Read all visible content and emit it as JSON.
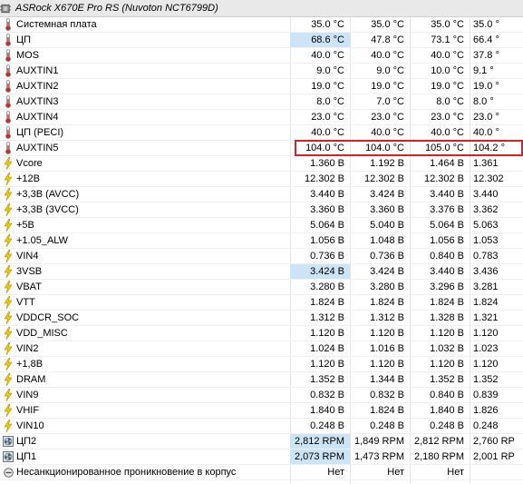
{
  "header": {
    "title": "ASRock X670E Pro RS (Nuvoton NCT6799D)"
  },
  "rows": [
    {
      "type": "temp",
      "label": "Системная плата",
      "v1": "35.0 °C",
      "v2": "35.0 °C",
      "v3": "35.0 °C",
      "v4": "35.0 °"
    },
    {
      "type": "temp",
      "label": "ЦП",
      "v1": "68.6 °C",
      "v2": "47.8 °C",
      "v3": "73.1 °C",
      "v4": "66.4 °",
      "hl": true
    },
    {
      "type": "temp",
      "label": "MOS",
      "v1": "40.0 °C",
      "v2": "40.0 °C",
      "v3": "40.0 °C",
      "v4": "37.8 °"
    },
    {
      "type": "temp",
      "label": "AUXTIN1",
      "v1": "9.0 °C",
      "v2": "9.0 °C",
      "v3": "10.0 °C",
      "v4": "9.1 °"
    },
    {
      "type": "temp",
      "label": "AUXTIN2",
      "v1": "19.0 °C",
      "v2": "19.0 °C",
      "v3": "19.0 °C",
      "v4": "19.0 °"
    },
    {
      "type": "temp",
      "label": "AUXTIN3",
      "v1": "8.0 °C",
      "v2": "7.0 °C",
      "v3": "8.0 °C",
      "v4": "8.0 °"
    },
    {
      "type": "temp",
      "label": "AUXTIN4",
      "v1": "23.0 °C",
      "v2": "23.0 °C",
      "v3": "23.0 °C",
      "v4": "23.0 °"
    },
    {
      "type": "temp",
      "label": "ЦП (PECI)",
      "v1": "40.0 °C",
      "v2": "40.0 °C",
      "v3": "40.0 °C",
      "v4": "40.0 °"
    },
    {
      "type": "temp",
      "label": "AUXTIN5",
      "v1": "104.0 °C",
      "v2": "104.0 °C",
      "v3": "105.0 °C",
      "v4": "104.2 °"
    },
    {
      "type": "volt",
      "label": "Vcore",
      "v1": "1.360 В",
      "v2": "1.192 В",
      "v3": "1.464 В",
      "v4": "1.361"
    },
    {
      "type": "volt",
      "label": "+12В",
      "v1": "12.302 В",
      "v2": "12.302 В",
      "v3": "12.302 В",
      "v4": "12.302"
    },
    {
      "type": "volt",
      "label": "+3,3В (AVCC)",
      "v1": "3.440 В",
      "v2": "3.424 В",
      "v3": "3.440 В",
      "v4": "3.440"
    },
    {
      "type": "volt",
      "label": "+3,3В (3VCC)",
      "v1": "3.360 В",
      "v2": "3.360 В",
      "v3": "3.376 В",
      "v4": "3.362"
    },
    {
      "type": "volt",
      "label": "+5В",
      "v1": "5.064 В",
      "v2": "5.040 В",
      "v3": "5.064 В",
      "v4": "5.063"
    },
    {
      "type": "volt",
      "label": "+1.05_ALW",
      "v1": "1.056 В",
      "v2": "1.048 В",
      "v3": "1.056 В",
      "v4": "1.053"
    },
    {
      "type": "volt",
      "label": "VIN4",
      "v1": "0.736 В",
      "v2": "0.736 В",
      "v3": "0.840 В",
      "v4": "0.783"
    },
    {
      "type": "volt",
      "label": "3VSB",
      "v1": "3.424 В",
      "v2": "3.424 В",
      "v3": "3.440 В",
      "v4": "3.436",
      "hl": true
    },
    {
      "type": "volt",
      "label": "VBAT",
      "v1": "3.280 В",
      "v2": "3.280 В",
      "v3": "3.296 В",
      "v4": "3.281"
    },
    {
      "type": "volt",
      "label": "VTT",
      "v1": "1.824 В",
      "v2": "1.824 В",
      "v3": "1.824 В",
      "v4": "1.824"
    },
    {
      "type": "volt",
      "label": "VDDCR_SOC",
      "v1": "1.312 В",
      "v2": "1.312 В",
      "v3": "1.328 В",
      "v4": "1.321"
    },
    {
      "type": "volt",
      "label": "VDD_MISC",
      "v1": "1.120 В",
      "v2": "1.120 В",
      "v3": "1.120 В",
      "v4": "1.120"
    },
    {
      "type": "volt",
      "label": "VIN2",
      "v1": "1.024 В",
      "v2": "1.016 В",
      "v3": "1.032 В",
      "v4": "1.023"
    },
    {
      "type": "volt",
      "label": "+1,8В",
      "v1": "1.120 В",
      "v2": "1.120 В",
      "v3": "1.120 В",
      "v4": "1.120"
    },
    {
      "type": "volt",
      "label": "DRAM",
      "v1": "1.352 В",
      "v2": "1.344 В",
      "v3": "1.352 В",
      "v4": "1.352"
    },
    {
      "type": "volt",
      "label": "VIN9",
      "v1": "0.832 В",
      "v2": "0.832 В",
      "v3": "0.840 В",
      "v4": "0.839"
    },
    {
      "type": "volt",
      "label": "VHIF",
      "v1": "1.840 В",
      "v2": "1.824 В",
      "v3": "1.840 В",
      "v4": "1.826"
    },
    {
      "type": "volt",
      "label": "VIN10",
      "v1": "0.248 В",
      "v2": "0.248 В",
      "v3": "0.248 В",
      "v4": "0.248"
    },
    {
      "type": "fan",
      "label": "ЦП2",
      "v1": "2,812 RPM",
      "v2": "1,849 RPM",
      "v3": "2,812 RPM",
      "v4": "2,760 RP",
      "hl": true
    },
    {
      "type": "fan",
      "label": "ЦП1",
      "v1": "2,073 RPM",
      "v2": "1,473 RPM",
      "v3": "2,180 RPM",
      "v4": "2,001 RP",
      "hl": true
    },
    {
      "type": "intrusion",
      "label": "Несанкционированное проникновение в корпус",
      "v1": "Нет",
      "v2": "Нет",
      "v3": "Нет",
      "v4": ""
    }
  ],
  "colors": {
    "highlight": "#cce4f7",
    "alert_border": "#d4242a",
    "bolt": "#e8c000",
    "thermo": "#cc2a2a"
  }
}
